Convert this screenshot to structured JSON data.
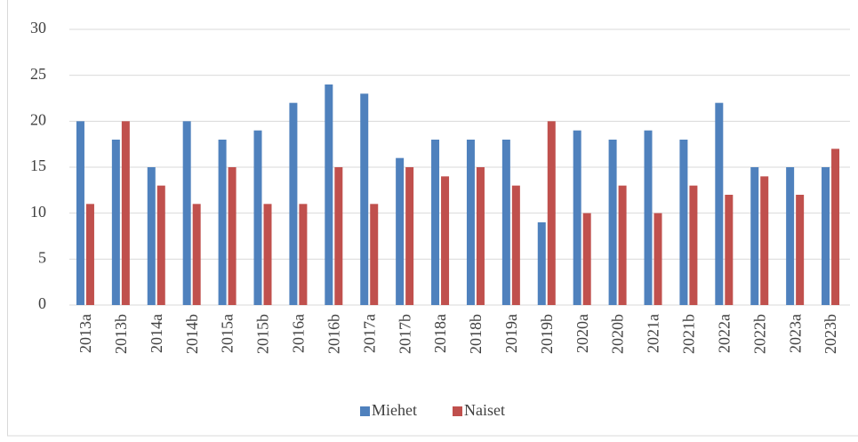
{
  "chart_data": {
    "type": "bar",
    "categories": [
      "2013a",
      "2013b",
      "2014a",
      "2014b",
      "2015a",
      "2015b",
      "2016a",
      "2016b",
      "2017a",
      "2017b",
      "2018a",
      "2018b",
      "2019a",
      "2019b",
      "2020a",
      "2020b",
      "2021a",
      "2021b",
      "2022a",
      "2022b",
      "2023a",
      "2023b"
    ],
    "series": [
      {
        "name": "Miehet",
        "color": "#4f81bd",
        "values": [
          20,
          18,
          15,
          20,
          18,
          19,
          22,
          24,
          23,
          16,
          18,
          18,
          18,
          9,
          19,
          18,
          19,
          18,
          22,
          15,
          15,
          15
        ]
      },
      {
        "name": "Naiset",
        "color": "#c0504d",
        "values": [
          11,
          20,
          13,
          11,
          15,
          11,
          11,
          15,
          11,
          15,
          14,
          15,
          13,
          20,
          10,
          13,
          10,
          13,
          12,
          14,
          12,
          17
        ]
      }
    ],
    "ylim": [
      0,
      30
    ],
    "yticks": [
      0,
      5,
      10,
      15,
      20,
      25,
      30
    ],
    "grid": true,
    "legend": "bottom"
  }
}
